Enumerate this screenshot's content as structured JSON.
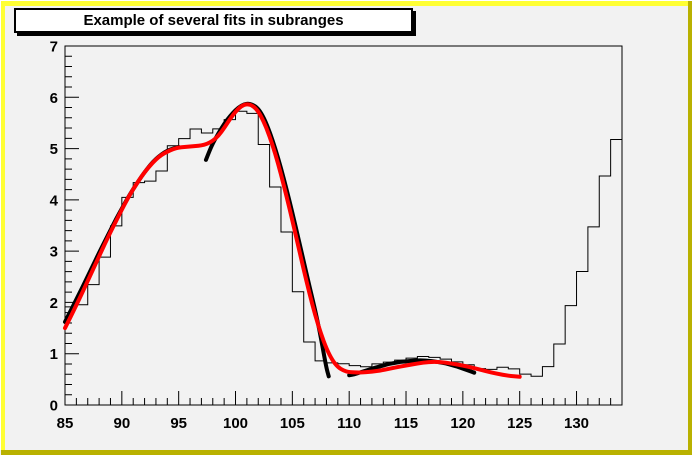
{
  "window": {
    "canvas_fill": "#f2f2f2",
    "border_light_yellow": "#ffff33",
    "border_dark_olive": "#b9b100",
    "edge_highlight": "#ffffff"
  },
  "title_box": {
    "text": "Example of several fits in subranges",
    "fill": "#ffffff",
    "border_color": "#000000"
  },
  "chart_data": {
    "type": "bar",
    "subtype": "histogram-step-with-fit-curves",
    "title": "Example of several fits in subranges",
    "xlabel": "",
    "ylabel": "",
    "xlim": [
      85,
      134
    ],
    "ylim": [
      0,
      7
    ],
    "x_ticks": [
      85,
      90,
      95,
      100,
      105,
      110,
      115,
      120,
      125,
      130
    ],
    "y_ticks": [
      0,
      1,
      2,
      3,
      4,
      5,
      6,
      7
    ],
    "x_minor_step": 1,
    "y_minor_step": 0.2,
    "grid": false,
    "legend": "none",
    "histogram": {
      "name": "h",
      "color": "#000000",
      "line_width": 1,
      "bin_start": 85,
      "bin_width": 1,
      "values": [
        1.9135,
        1.9538,
        2.3474,
        2.8837,
        3.4936,
        4.0476,
        4.3372,
        4.3643,
        4.563,
        5.0542,
        5.1942,
        5.3805,
        5.3032,
        5.3846,
        5.564,
        5.7285,
        5.6858,
        5.08,
        4.2518,
        3.3722,
        2.2074,
        1.2275,
        0.8598,
        0.8221,
        0.8047,
        0.7684,
        0.747,
        0.802,
        0.8362,
        0.8745,
        0.9144,
        0.9463,
        0.9285,
        0.8955,
        0.8411,
        0.7854,
        0.7101,
        0.6939,
        0.7364,
        0.7033,
        0.6029,
        0.56,
        0.7477,
        1.1888,
        1.9382,
        2.6027,
        3.473,
        4.465,
        5.177
      ]
    },
    "fits": [
      {
        "name": "g1",
        "range": [
          85,
          95
        ],
        "color": "#000000",
        "width": 4,
        "points": [
          [
            85,
            1.62
          ],
          [
            85.5,
            1.84
          ],
          [
            86,
            2.06
          ],
          [
            86.5,
            2.28
          ],
          [
            87,
            2.51
          ],
          [
            87.5,
            2.74
          ],
          [
            88,
            2.97
          ],
          [
            88.5,
            3.19
          ],
          [
            89,
            3.41
          ],
          [
            89.5,
            3.63
          ],
          [
            90,
            3.83
          ],
          [
            90.5,
            4.03
          ],
          [
            91,
            4.21
          ],
          [
            91.5,
            4.38
          ],
          [
            92,
            4.54
          ],
          [
            92.5,
            4.68
          ],
          [
            93,
            4.8
          ],
          [
            93.5,
            4.89
          ],
          [
            94,
            4.96
          ],
          [
            94.5,
            5.0
          ],
          [
            95,
            5.03
          ]
        ]
      },
      {
        "name": "g2",
        "range": [
          98,
          108
        ],
        "color": "#000000",
        "width": 4,
        "points": [
          [
            97.4,
            4.78
          ],
          [
            97.7,
            4.95
          ],
          [
            98,
            5.1
          ],
          [
            98.5,
            5.3
          ],
          [
            99,
            5.48
          ],
          [
            99.5,
            5.63
          ],
          [
            100,
            5.75
          ],
          [
            100.5,
            5.84
          ],
          [
            101,
            5.88
          ],
          [
            101.5,
            5.86
          ],
          [
            102,
            5.78
          ],
          [
            102.5,
            5.6
          ],
          [
            103,
            5.33
          ],
          [
            103.5,
            5.0
          ],
          [
            104,
            4.62
          ],
          [
            104.5,
            4.2
          ],
          [
            105,
            3.75
          ],
          [
            105.5,
            3.28
          ],
          [
            106,
            2.8
          ],
          [
            106.5,
            2.32
          ],
          [
            107,
            1.86
          ],
          [
            107.4,
            1.44
          ],
          [
            107.7,
            1.08
          ],
          [
            108,
            0.72
          ],
          [
            108.2,
            0.56
          ]
        ]
      },
      {
        "name": "g3",
        "range": [
          110,
          121
        ],
        "color": "#000000",
        "width": 4,
        "points": [
          [
            110,
            0.58
          ],
          [
            110.5,
            0.6
          ],
          [
            111,
            0.64
          ],
          [
            111.5,
            0.67
          ],
          [
            112,
            0.71
          ],
          [
            112.5,
            0.74
          ],
          [
            113,
            0.77
          ],
          [
            113.5,
            0.8
          ],
          [
            114,
            0.82
          ],
          [
            114.5,
            0.84
          ],
          [
            115,
            0.85
          ],
          [
            115.5,
            0.86
          ],
          [
            116,
            0.87
          ],
          [
            116.5,
            0.87
          ],
          [
            117,
            0.86
          ],
          [
            117.5,
            0.85
          ],
          [
            118,
            0.83
          ],
          [
            118.5,
            0.81
          ],
          [
            119,
            0.78
          ],
          [
            119.5,
            0.75
          ],
          [
            120,
            0.71
          ],
          [
            120.5,
            0.67
          ],
          [
            121,
            0.63
          ]
        ]
      },
      {
        "name": "total",
        "range": [
          85,
          125
        ],
        "color": "#ff0000",
        "width": 4,
        "points": [
          [
            85,
            1.5
          ],
          [
            85.5,
            1.72
          ],
          [
            86,
            1.95
          ],
          [
            86.5,
            2.18
          ],
          [
            87,
            2.42
          ],
          [
            87.5,
            2.66
          ],
          [
            88,
            2.9
          ],
          [
            88.5,
            3.14
          ],
          [
            89,
            3.37
          ],
          [
            89.5,
            3.59
          ],
          [
            90,
            3.81
          ],
          [
            90.5,
            4.02
          ],
          [
            91,
            4.21
          ],
          [
            91.5,
            4.38
          ],
          [
            92,
            4.54
          ],
          [
            92.5,
            4.67
          ],
          [
            93,
            4.79
          ],
          [
            93.5,
            4.88
          ],
          [
            94,
            4.94
          ],
          [
            94.5,
            4.99
          ],
          [
            95,
            5.02
          ],
          [
            95.5,
            5.03
          ],
          [
            96,
            5.04
          ],
          [
            96.5,
            5.05
          ],
          [
            97,
            5.06
          ],
          [
            97.5,
            5.09
          ],
          [
            98,
            5.15
          ],
          [
            98.5,
            5.25
          ],
          [
            99,
            5.4
          ],
          [
            99.5,
            5.57
          ],
          [
            100,
            5.72
          ],
          [
            100.5,
            5.83
          ],
          [
            101,
            5.87
          ],
          [
            101.5,
            5.84
          ],
          [
            102,
            5.73
          ],
          [
            102.5,
            5.52
          ],
          [
            103,
            5.24
          ],
          [
            103.5,
            4.9
          ],
          [
            104,
            4.5
          ],
          [
            104.5,
            4.06
          ],
          [
            105,
            3.6
          ],
          [
            105.5,
            3.12
          ],
          [
            106,
            2.64
          ],
          [
            106.5,
            2.18
          ],
          [
            107,
            1.76
          ],
          [
            107.5,
            1.4
          ],
          [
            108,
            1.1
          ],
          [
            108.5,
            0.88
          ],
          [
            109,
            0.74
          ],
          [
            109.5,
            0.67
          ],
          [
            110,
            0.64
          ],
          [
            111,
            0.63
          ],
          [
            112,
            0.65
          ],
          [
            113,
            0.68
          ],
          [
            114,
            0.73
          ],
          [
            115,
            0.77
          ],
          [
            116,
            0.81
          ],
          [
            117,
            0.84
          ],
          [
            118,
            0.84
          ],
          [
            119,
            0.81
          ],
          [
            120,
            0.77
          ],
          [
            121,
            0.72
          ],
          [
            122,
            0.66
          ],
          [
            123,
            0.61
          ],
          [
            124,
            0.57
          ],
          [
            125,
            0.55
          ]
        ]
      }
    ]
  }
}
